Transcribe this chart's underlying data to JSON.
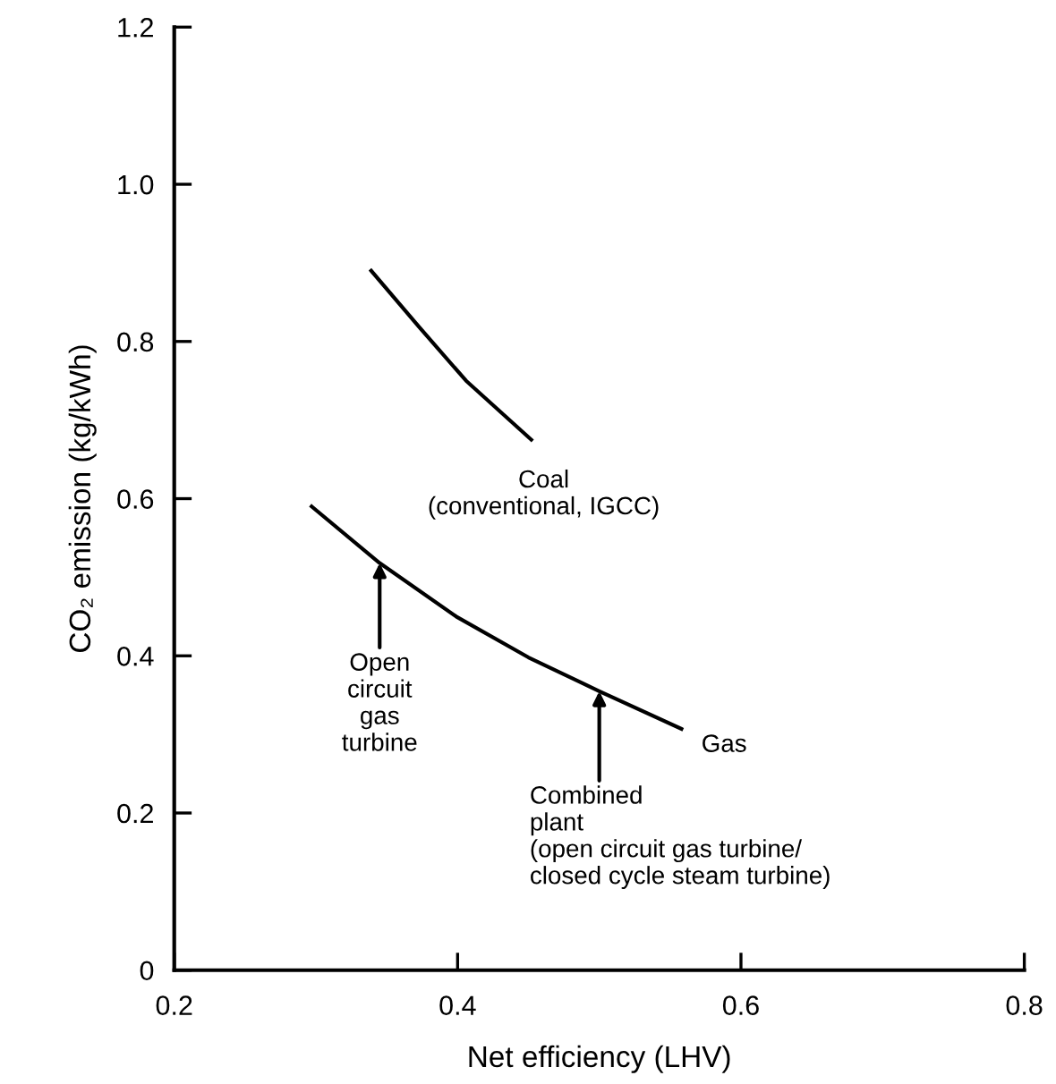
{
  "chart_data": {
    "type": "line",
    "xlabel": "Net efficiency (LHV)",
    "ylabel": "CO₂ emission (kg/kWh)",
    "xlim": [
      0.2,
      0.8
    ],
    "ylim": [
      0,
      1.2
    ],
    "xticks": [
      0.2,
      0.4,
      0.6,
      0.8
    ],
    "yticks": [
      0,
      0.2,
      0.4,
      0.6,
      0.8,
      {
        "value": 1.0,
        "label": "1.0"
      },
      1.2
    ],
    "grid": false,
    "marker": "none",
    "line_style": "solid",
    "series": [
      {
        "color": "#000000",
        "x": [
          0.339,
          0.373,
          0.406,
          0.452
        ],
        "values": [
          0.89,
          0.818,
          0.75,
          0.675
        ]
      },
      {
        "color": "#000000",
        "x": [
          0.297,
          0.345,
          0.399,
          0.45,
          0.5,
          0.558
        ],
        "values": [
          0.59,
          0.518,
          0.45,
          0.398,
          0.355,
          0.307
        ]
      }
    ],
    "annotations": [
      {
        "text": "Coal\n(conventional, IGCC)",
        "x": 0.452,
        "y": 0.675
      },
      {
        "text": "Open\ncircuit\ngas\nturbine",
        "x": 0.345,
        "y": 0.518
      },
      {
        "text": "Gas",
        "x": 0.558,
        "y": 0.307
      },
      {
        "text": "Combined\nplant\n(open circuit gas turbine/\nclosed cycle steam turbine)",
        "x": 0.5,
        "y": 0.355
      }
    ]
  }
}
